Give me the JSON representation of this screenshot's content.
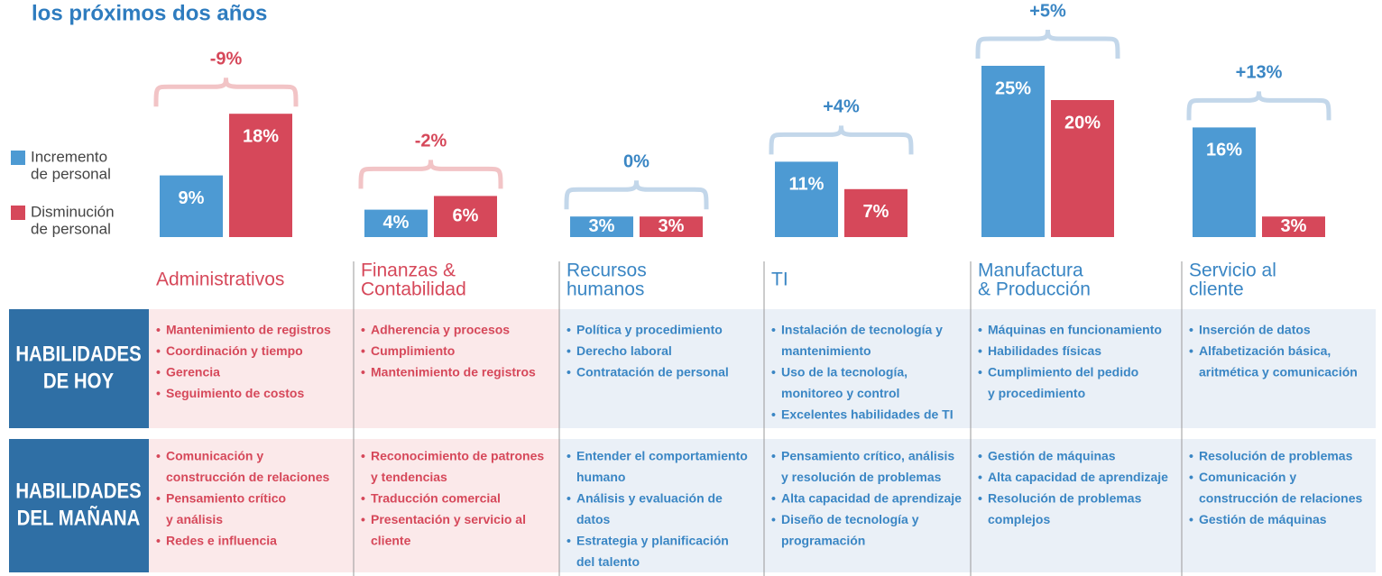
{
  "title": "los próximos dos años",
  "legend": [
    {
      "label": [
        "Incremento",
        "de personal"
      ],
      "color": "#4d9ad3"
    },
    {
      "label": [
        "Disminución",
        "de personal"
      ],
      "color": "#d6485a"
    }
  ],
  "row_labels": [
    [
      "HABILIDADES",
      "DE HOY"
    ],
    [
      "HABILIDADES",
      "DEL MAÑANA"
    ]
  ],
  "groups": [
    {
      "name": [
        "Administrativos"
      ],
      "color": "#d6485a",
      "background": "#fbe9ea",
      "change": "-9%",
      "brace_color": "#f2c4c6",
      "values": [
        9,
        18
      ],
      "value_labels": [
        "9%",
        "18%"
      ],
      "today": [
        [
          "Mantenimiento de registros"
        ],
        [
          "Coordinación y tiempo"
        ],
        [
          "Gerencia"
        ],
        [
          "Seguimiento de costos"
        ]
      ],
      "tomorrow": [
        [
          "Comunicación y",
          "construcción de relaciones"
        ],
        [
          "Pensamiento crítico",
          "y análisis"
        ],
        [
          "Redes e influencia"
        ]
      ]
    },
    {
      "name": [
        "Finanzas &",
        "Contabilidad"
      ],
      "color": "#d6485a",
      "background": "#fbe9ea",
      "change": "-2%",
      "brace_color": "#f2c4c6",
      "values": [
        4,
        6
      ],
      "value_labels": [
        "4%",
        "6%"
      ],
      "today": [
        [
          "Adherencia y procesos"
        ],
        [
          "Cumplimiento"
        ],
        [
          "Mantenimiento de registros"
        ]
      ],
      "tomorrow": [
        [
          "Reconocimiento de patrones",
          "y tendencias"
        ],
        [
          "Traducción comercial"
        ],
        [
          "Presentación y servicio al",
          "cliente"
        ]
      ]
    },
    {
      "name": [
        "Recursos",
        "humanos"
      ],
      "color": "#3a86c4",
      "background": "#eaf0f7",
      "change": "0%",
      "brace_color": "#c3d7ea",
      "values": [
        3,
        3
      ],
      "value_labels": [
        "3%",
        "3%"
      ],
      "today": [
        [
          "Política y procedimiento"
        ],
        [
          "Derecho laboral"
        ],
        [
          "Contratación de personal"
        ]
      ],
      "tomorrow": [
        [
          "Entender el comportamiento",
          "humano"
        ],
        [
          "Análisis y evaluación de",
          "datos"
        ],
        [
          "Estrategia y planificación",
          "del talento"
        ]
      ]
    },
    {
      "name": [
        "TI"
      ],
      "color": "#3a86c4",
      "background": "#eaf0f7",
      "change": "+4%",
      "brace_color": "#c3d7ea",
      "values": [
        11,
        7
      ],
      "value_labels": [
        "11%",
        "7%"
      ],
      "today": [
        [
          "Instalación de tecnología y",
          "mantenimiento"
        ],
        [
          "Uso de la tecnología,",
          "monitoreo y control"
        ],
        [
          "Excelentes habilidades de TI"
        ]
      ],
      "tomorrow": [
        [
          "Pensamiento crítico, análisis",
          "y resolución de problemas"
        ],
        [
          "Alta capacidad de aprendizaje"
        ],
        [
          "Diseño de tecnología y",
          "programación"
        ]
      ]
    },
    {
      "name": [
        "Manufactura",
        "& Producción"
      ],
      "color": "#3a86c4",
      "background": "#eaf0f7",
      "change": "+5%",
      "brace_color": "#c3d7ea",
      "values": [
        25,
        20
      ],
      "value_labels": [
        "25%",
        "20%"
      ],
      "today": [
        [
          "Máquinas en funcionamiento"
        ],
        [
          "Habilidades físicas"
        ],
        [
          "Cumplimiento del pedido",
          "y procedimiento"
        ]
      ],
      "tomorrow": [
        [
          "Gestión de máquinas"
        ],
        [
          "Alta capacidad de aprendizaje"
        ],
        [
          "Resolución de problemas",
          "complejos"
        ]
      ]
    },
    {
      "name": [
        "Servicio al",
        "cliente"
      ],
      "color": "#3a86c4",
      "background": "#eaf0f7",
      "change": "+13%",
      "brace_color": "#c3d7ea",
      "values": [
        16,
        3
      ],
      "value_labels": [
        "16%",
        "3%"
      ],
      "today": [
        [
          "Inserción de datos"
        ],
        [
          "Alfabetización básica,",
          "aritmética y comunicación"
        ]
      ],
      "tomorrow": [
        [
          "Resolución de problemas"
        ],
        [
          "Comunicación y",
          "construcción de relaciones"
        ],
        [
          "Gestión de máquinas"
        ]
      ]
    }
  ]
}
